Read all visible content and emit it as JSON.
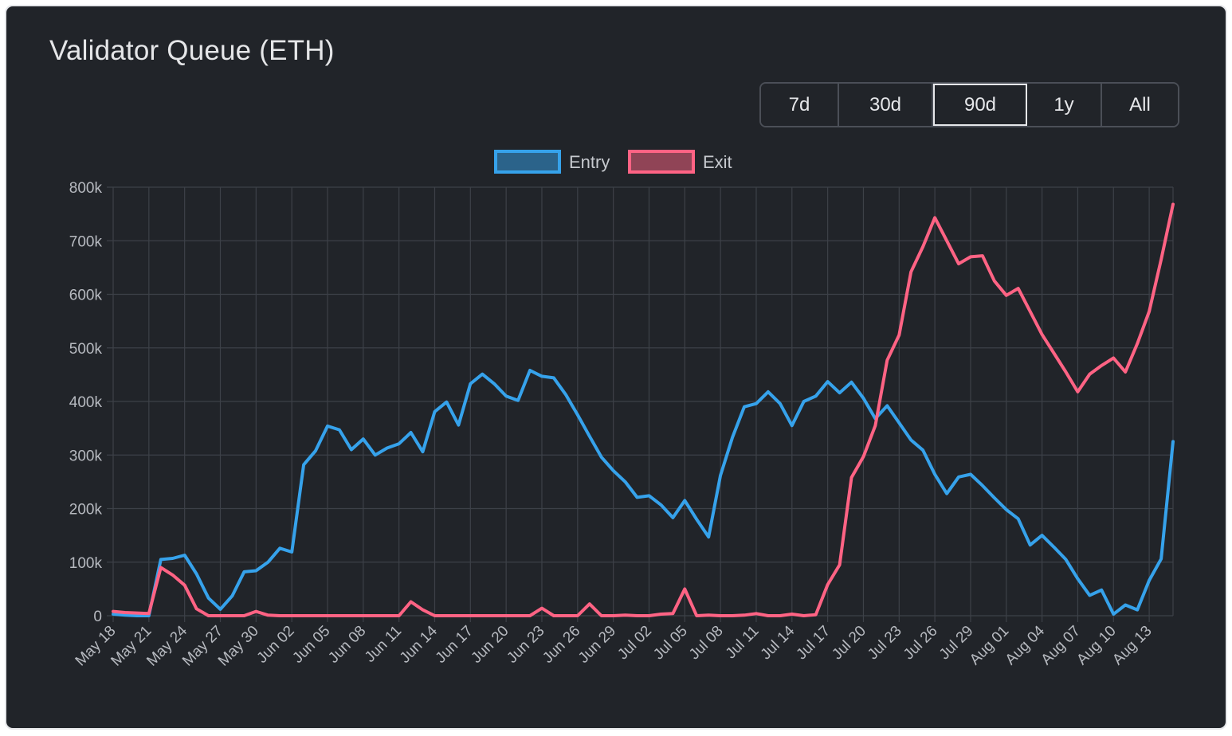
{
  "header": {
    "title": "Validator Queue (ETH)"
  },
  "range_buttons": [
    {
      "label": "7d",
      "active": false
    },
    {
      "label": "30d",
      "active": false
    },
    {
      "label": "90d",
      "active": true
    },
    {
      "label": "1y",
      "active": false
    },
    {
      "label": "All",
      "active": false
    }
  ],
  "chart_data": {
    "type": "line",
    "title": "",
    "xlabel": "",
    "ylabel": "",
    "ylim": [
      0,
      800000
    ],
    "y_ticks": [
      "0",
      "100k",
      "200k",
      "300k",
      "400k",
      "500k",
      "600k",
      "700k",
      "800k"
    ],
    "x_tick_labels": [
      "May 18",
      "May 21",
      "May 24",
      "May 27",
      "May 30",
      "Jun 02",
      "Jun 05",
      "Jun 08",
      "Jun 11",
      "Jun 14",
      "Jun 17",
      "Jun 20",
      "Jun 23",
      "Jun 26",
      "Jun 29",
      "Jul 02",
      "Jul 05",
      "Jul 08",
      "Jul 11",
      "Jul 14",
      "Jul 17",
      "Jul 20",
      "Jul 23",
      "Jul 26",
      "Jul 29",
      "Aug 01",
      "Aug 04",
      "Aug 07",
      "Aug 10",
      "Aug 13"
    ],
    "x_start": "May 18",
    "grid": true,
    "legend_position": "top",
    "series": [
      {
        "name": "Entry",
        "color": "#36a2eb",
        "values": [
          3000,
          1000,
          0,
          0,
          105000,
          107000,
          113000,
          78000,
          33000,
          12000,
          37000,
          82000,
          84000,
          100000,
          126000,
          119000,
          282000,
          308000,
          354000,
          347000,
          310000,
          330000,
          300000,
          313000,
          321000,
          342000,
          306000,
          381000,
          399000,
          356000,
          433000,
          451000,
          433000,
          410000,
          402000,
          458000,
          447000,
          444000,
          413000,
          375000,
          335000,
          296000,
          271000,
          250000,
          221000,
          224000,
          207000,
          183000,
          215000,
          180000,
          147000,
          262000,
          333000,
          390000,
          396000,
          418000,
          396000,
          355000,
          400000,
          410000,
          437000,
          416000,
          436000,
          406000,
          368000,
          392000,
          360000,
          328000,
          309000,
          264000,
          228000,
          259000,
          264000,
          243000,
          220000,
          198000,
          181000,
          132000,
          150000,
          128000,
          105000,
          69000,
          38000,
          48000,
          3000,
          20000,
          11000,
          66000,
          106000,
          325000
        ]
      },
      {
        "name": "Exit",
        "color": "#ff6384",
        "values": [
          8000,
          6000,
          5000,
          4000,
          90000,
          76000,
          57000,
          13000,
          0,
          0,
          0,
          0,
          8000,
          1000,
          0,
          0,
          0,
          0,
          0,
          0,
          0,
          0,
          0,
          0,
          0,
          26000,
          11000,
          0,
          0,
          0,
          0,
          0,
          0,
          0,
          0,
          0,
          14000,
          0,
          0,
          0,
          22000,
          0,
          0,
          1000,
          0,
          0,
          3000,
          4000,
          50000,
          0,
          1000,
          0,
          0,
          1000,
          4000,
          0,
          0,
          3000,
          0,
          2000,
          58000,
          95000,
          258000,
          297000,
          355000,
          477000,
          524000,
          642000,
          689000,
          743000,
          700000,
          657000,
          670000,
          672000,
          625000,
          598000,
          611000,
          568000,
          525000,
          490000,
          455000,
          418000,
          451000,
          467000,
          481000,
          455000,
          508000,
          568000,
          665000,
          768000
        ]
      }
    ]
  }
}
